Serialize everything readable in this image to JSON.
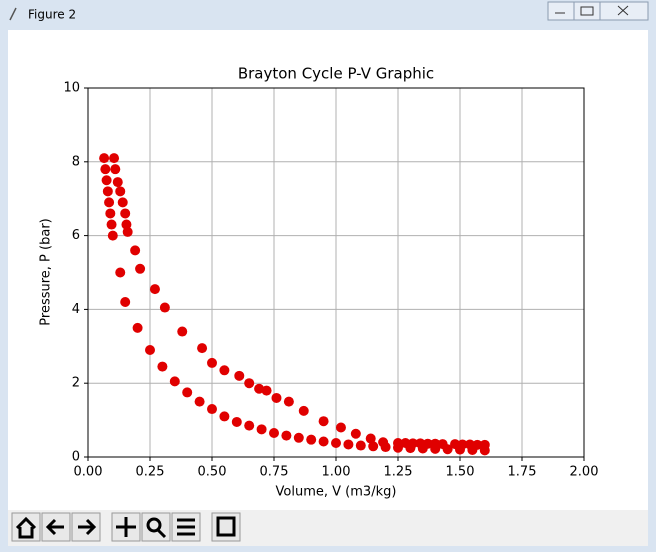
{
  "window": {
    "title": "Figure 2"
  },
  "chart_data": {
    "type": "scatter",
    "title": "Brayton Cycle P-V Graphic",
    "x_label": "Volume, V (m3/kg)",
    "y_label": "Pressure, P (bar)",
    "color": "#e00000",
    "grid": true,
    "xlim": [
      0,
      2
    ],
    "ylim": [
      0,
      10
    ],
    "xticks": [
      {
        "value": 0,
        "label": "0.00"
      },
      {
        "value": 0.25,
        "label": "0.25"
      },
      {
        "value": 0.5,
        "label": "0.50"
      },
      {
        "value": 0.75,
        "label": "0.75"
      },
      {
        "value": 1,
        "label": "1.00"
      },
      {
        "value": 1.25,
        "label": "1.25"
      },
      {
        "value": 1.5,
        "label": "1.50"
      },
      {
        "value": 1.75,
        "label": "1.75"
      },
      {
        "value": 2,
        "label": "2.00"
      }
    ],
    "yticks": [
      0,
      2,
      4,
      6,
      8,
      10
    ],
    "x": [
      0.105,
      0.11,
      0.12,
      0.13,
      0.14,
      0.15,
      0.155,
      0.16,
      0.19,
      0.21,
      0.27,
      0.31,
      0.38,
      0.46,
      0.5,
      0.55,
      0.61,
      0.65,
      0.69,
      0.72,
      0.76,
      0.81,
      0.87,
      0.95,
      1.02,
      1.08,
      1.14,
      1.19,
      1.25,
      1.28,
      1.31,
      1.34,
      1.37,
      1.4,
      1.43,
      1.48,
      1.51,
      1.54,
      1.57,
      1.6,
      0.065,
      0.07,
      0.075,
      0.08,
      0.085,
      0.09,
      0.095,
      0.1,
      0.13,
      0.15,
      0.2,
      0.25,
      0.3,
      0.35,
      0.4,
      0.45,
      0.5,
      0.55,
      0.6,
      0.65,
      0.7,
      0.75,
      0.8,
      0.85,
      0.9,
      0.95,
      1.0,
      1.05,
      1.1,
      1.15,
      1.2,
      1.25,
      1.3,
      1.35,
      1.4,
      1.45,
      1.5,
      1.55,
      1.6
    ],
    "values": [
      8.1,
      7.8,
      7.45,
      7.2,
      6.9,
      6.6,
      6.3,
      6.1,
      5.6,
      5.1,
      4.55,
      4.05,
      3.4,
      2.95,
      2.55,
      2.35,
      2.2,
      2.0,
      1.85,
      1.8,
      1.6,
      1.5,
      1.25,
      0.97,
      0.8,
      0.63,
      0.5,
      0.4,
      0.38,
      0.38,
      0.37,
      0.37,
      0.36,
      0.36,
      0.35,
      0.35,
      0.34,
      0.34,
      0.33,
      0.33,
      8.1,
      7.8,
      7.5,
      7.2,
      6.9,
      6.6,
      6.3,
      6.0,
      5.0,
      4.2,
      3.5,
      2.9,
      2.45,
      2.05,
      1.75,
      1.5,
      1.3,
      1.1,
      0.95,
      0.85,
      0.75,
      0.65,
      0.58,
      0.52,
      0.47,
      0.42,
      0.38,
      0.34,
      0.31,
      0.29,
      0.27,
      0.25,
      0.24,
      0.23,
      0.22,
      0.21,
      0.2,
      0.19,
      0.18
    ]
  }
}
